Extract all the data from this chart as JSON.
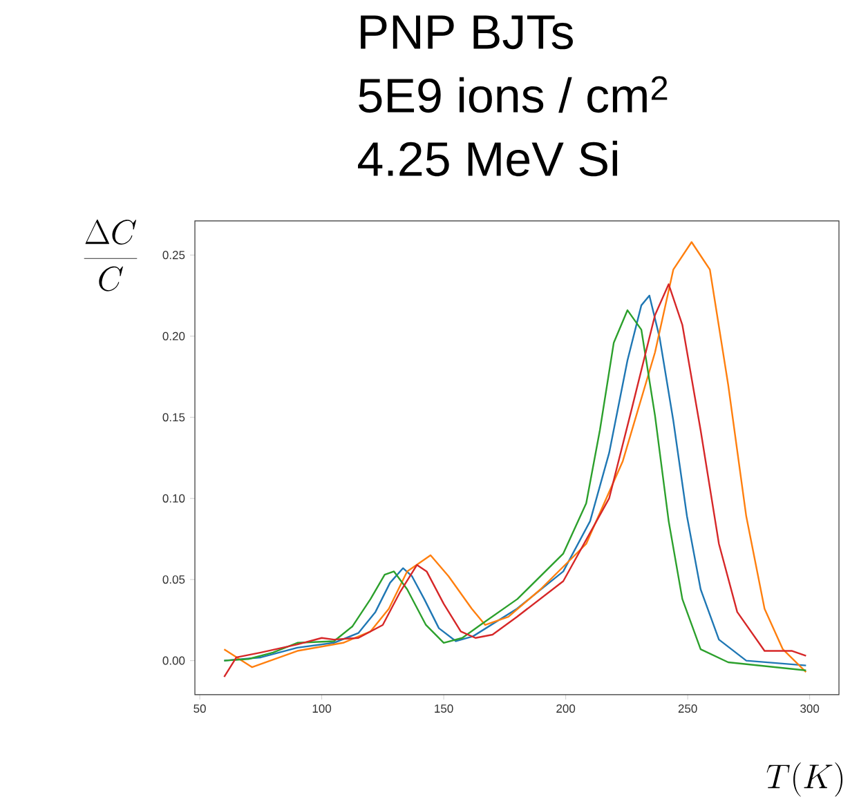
{
  "chart_data": {
    "type": "line",
    "title": "PNP BJTs",
    "subtitle": "5E9 ions / cm$^{2}$",
    "annotations": [
      "4.25 MeV Si"
    ],
    "xlabel": "T(K)",
    "ylabel": "\\frac{\\Delta C}{C}",
    "xlim": [
      48,
      312
    ],
    "ylim": [
      -0.021,
      0.271
    ],
    "xticks": [
      50,
      100,
      150,
      200,
      250,
      300
    ],
    "yticks": [
      {
        "value": 0,
        "label": "0.00"
      },
      {
        "value": 0.05,
        "label": "0.05"
      },
      {
        "value": 0.1,
        "label": "0.10"
      },
      {
        "value": 0.15,
        "label": "0.15"
      },
      {
        "value": 0.2,
        "label": "0.20"
      },
      {
        "value": 0.25,
        "label": "0.25"
      }
    ],
    "series": [
      {
        "color": "#1f77b4",
        "x": [
          60,
          75,
          90,
          105,
          115,
          122,
          128,
          133.3,
          137,
          142,
          148,
          155,
          162,
          180,
          199,
          210,
          217.8,
          225.3,
          231,
          234.3,
          238.5,
          244.1,
          249.7,
          255.3,
          262.8,
          274,
          298.5
        ],
        "values": [
          0,
          0.002,
          0.008,
          0.011,
          0.017,
          0.03,
          0.048,
          0.057,
          0.052,
          0.038,
          0.02,
          0.012,
          0.015,
          0.032,
          0.055,
          0.086,
          0.128,
          0.185,
          0.219,
          0.225,
          0.199,
          0.148,
          0.089,
          0.044,
          0.013,
          0,
          -0.003
        ]
      },
      {
        "color": "#ff7f0e",
        "x": [
          60,
          71.4,
          90,
          108.8,
          120,
          127.5,
          135,
          144.6,
          152,
          161.5,
          167,
          176.5,
          189.7,
          208.4,
          223.4,
          236.6,
          244.1,
          251.6,
          259.1,
          266.6,
          274,
          281.5,
          289,
          298.5
        ],
        "values": [
          0.007,
          -0.004,
          0.006,
          0.011,
          0.018,
          0.032,
          0.055,
          0.065,
          0.052,
          0.032,
          0.022,
          0.027,
          0.044,
          0.072,
          0.123,
          0.19,
          0.241,
          0.258,
          0.241,
          0.17,
          0.089,
          0.032,
          0.007,
          -0.007
        ]
      },
      {
        "color": "#2ca02c",
        "x": [
          60,
          70,
          80,
          90,
          105,
          112.5,
          120,
          125.8,
          129.6,
          135,
          142.7,
          150,
          157.6,
          165,
          180.2,
          199,
          208.4,
          214,
          219.7,
          225.3,
          231,
          236.6,
          242.2,
          247.8,
          255.3,
          266.6,
          298.5
        ],
        "values": [
          0,
          0.001,
          0.005,
          0.011,
          0.012,
          0.021,
          0.038,
          0.053,
          0.055,
          0.044,
          0.022,
          0.011,
          0.014,
          0.022,
          0.038,
          0.066,
          0.097,
          0.142,
          0.196,
          0.216,
          0.204,
          0.151,
          0.086,
          0.038,
          0.007,
          -0.001,
          -0.006
        ]
      },
      {
        "color": "#d62728",
        "x": [
          60,
          65,
          75,
          90,
          100,
          105,
          115,
          125,
          132,
          139,
          143,
          150,
          157,
          163,
          170,
          180,
          199,
          217.8,
          227.2,
          236.6,
          242.2,
          247.8,
          255.3,
          262.8,
          270.3,
          281.5,
          292.8,
          298.5
        ],
        "values": [
          -0.01,
          0.002,
          0.005,
          0.01,
          0.014,
          0.013,
          0.014,
          0.022,
          0.042,
          0.059,
          0.055,
          0.035,
          0.018,
          0.014,
          0.016,
          0.027,
          0.049,
          0.1,
          0.156,
          0.213,
          0.232,
          0.207,
          0.142,
          0.072,
          0.03,
          0.006,
          0.006,
          0.003
        ]
      }
    ]
  }
}
